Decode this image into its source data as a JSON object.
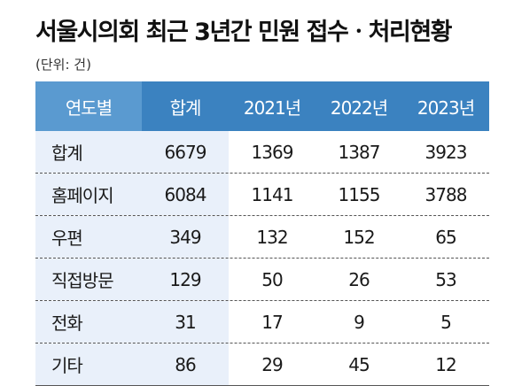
{
  "title": "서울시의회 최근 3년간 민원 접수ㆍ처리현황",
  "unit": "(단위: 건)",
  "chart_data": {
    "type": "table",
    "columns": [
      "연도별",
      "합계",
      "2021년",
      "2022년",
      "2023년"
    ],
    "rows": [
      {
        "label": "합계",
        "values": [
          "6679",
          "1369",
          "1387",
          "3923"
        ]
      },
      {
        "label": "홈페이지",
        "values": [
          "6084",
          "1141",
          "1155",
          "3788"
        ]
      },
      {
        "label": "우편",
        "values": [
          "349",
          "132",
          "152",
          "65"
        ]
      },
      {
        "label": "직접방문",
        "values": [
          "129",
          "50",
          "26",
          "53"
        ]
      },
      {
        "label": "전화",
        "values": [
          "31",
          "17",
          "9",
          "5"
        ]
      },
      {
        "label": "기타",
        "values": [
          "86",
          "29",
          "45",
          "12"
        ]
      }
    ]
  }
}
